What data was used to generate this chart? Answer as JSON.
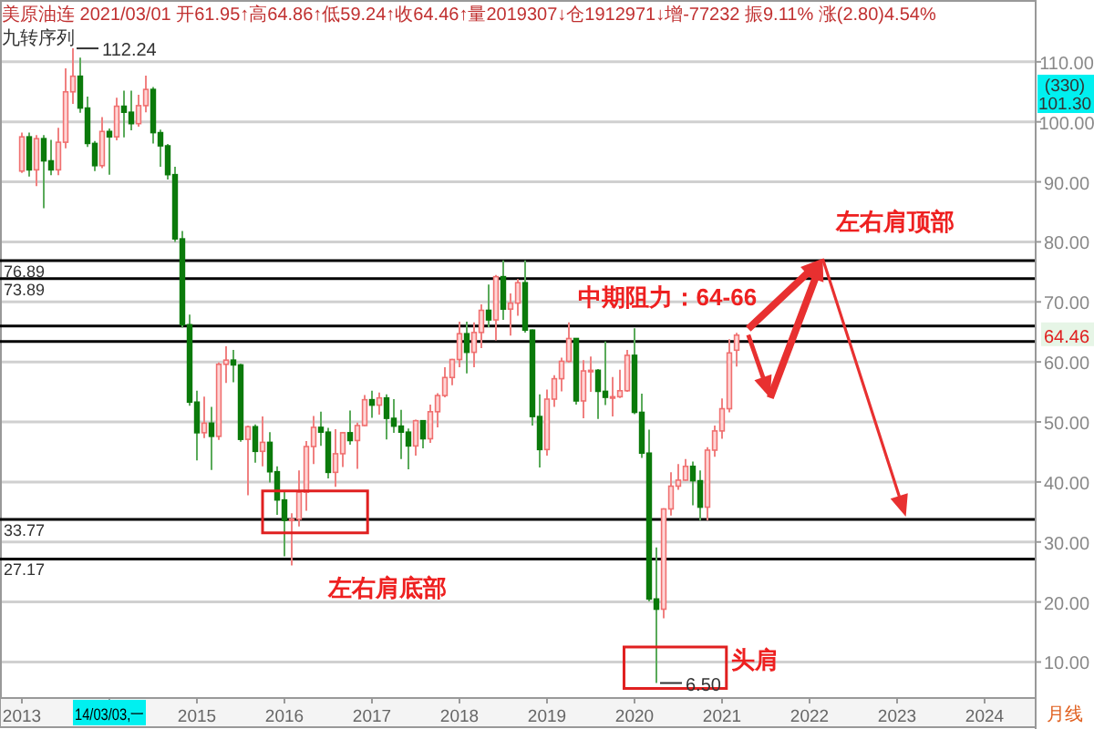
{
  "chart_data": {
    "type": "candlestick",
    "title": "美原油连 2021/03/01 开61.95↑高64.86↑低59.24↑收64.46↑量2019307↓仓1912971↓增-77232 振9.11% 涨(2.80)4.54%",
    "subtitle": "九转序列",
    "x": [
      "2013-01",
      "2013-02",
      "2013-03",
      "2013-04",
      "2013-05",
      "2013-06",
      "2013-07",
      "2013-08",
      "2013-09",
      "2013-10",
      "2013-11",
      "2013-12",
      "2014-01",
      "2014-02",
      "2014-03",
      "2014-04",
      "2014-05",
      "2014-06",
      "2014-07",
      "2014-08",
      "2014-09",
      "2014-10",
      "2014-11",
      "2014-12",
      "2015-01",
      "2015-02",
      "2015-03",
      "2015-04",
      "2015-05",
      "2015-06",
      "2015-07",
      "2015-08",
      "2015-09",
      "2015-10",
      "2015-11",
      "2015-12",
      "2016-01",
      "2016-02",
      "2016-03",
      "2016-04",
      "2016-05",
      "2016-06",
      "2016-07",
      "2016-08",
      "2016-09",
      "2016-10",
      "2016-11",
      "2016-12",
      "2017-01",
      "2017-02",
      "2017-03",
      "2017-04",
      "2017-05",
      "2017-06",
      "2017-07",
      "2017-08",
      "2017-09",
      "2017-10",
      "2017-11",
      "2017-12",
      "2018-01",
      "2018-02",
      "2018-03",
      "2018-04",
      "2018-05",
      "2018-06",
      "2018-07",
      "2018-08",
      "2018-09",
      "2018-10",
      "2018-11",
      "2018-12",
      "2019-01",
      "2019-02",
      "2019-03",
      "2019-04",
      "2019-05",
      "2019-06",
      "2019-07",
      "2019-08",
      "2019-09",
      "2019-10",
      "2019-11",
      "2019-12",
      "2020-01",
      "2020-02",
      "2020-03",
      "2020-04",
      "2020-05",
      "2020-06",
      "2020-07",
      "2020-08",
      "2020-09",
      "2020-10",
      "2020-11",
      "2020-12",
      "2021-01",
      "2021-02",
      "2021-03"
    ],
    "ohlc": [
      [
        91.8,
        98.2,
        91.5,
        97.5
      ],
      [
        97.5,
        98.2,
        90.9,
        92.0
      ],
      [
        92.0,
        97.8,
        89.3,
        97.2
      ],
      [
        97.2,
        97.8,
        85.6,
        93.5
      ],
      [
        93.5,
        97.0,
        91.1,
        92.0
      ],
      [
        92.0,
        99.0,
        91.1,
        96.6
      ],
      [
        96.6,
        108.9,
        95.6,
        105.0
      ],
      [
        105.0,
        112.24,
        103.0,
        107.6
      ],
      [
        107.6,
        110.7,
        101.5,
        102.3
      ],
      [
        102.3,
        104.2,
        95.8,
        96.4
      ],
      [
        96.4,
        96.8,
        91.8,
        92.7
      ],
      [
        92.7,
        100.8,
        92.3,
        98.4
      ],
      [
        98.4,
        98.9,
        91.2,
        97.5
      ],
      [
        97.5,
        104.0,
        96.9,
        102.6
      ],
      [
        102.6,
        105.2,
        97.4,
        101.6
      ],
      [
        101.6,
        105.2,
        98.6,
        99.7
      ],
      [
        99.7,
        104.5,
        99.2,
        102.7
      ],
      [
        102.7,
        107.7,
        101.6,
        105.4
      ],
      [
        105.4,
        105.8,
        96.4,
        98.2
      ],
      [
        98.2,
        98.7,
        92.5,
        96.0
      ],
      [
        96.0,
        96.3,
        90.4,
        91.2
      ],
      [
        91.2,
        92.5,
        80.0,
        80.5
      ],
      [
        80.5,
        81.8,
        65.7,
        66.2
      ],
      [
        66.2,
        67.9,
        52.7,
        53.3
      ],
      [
        53.3,
        55.2,
        43.6,
        48.2
      ],
      [
        48.2,
        54.2,
        47.3,
        49.8
      ],
      [
        49.8,
        52.5,
        42.0,
        47.6
      ],
      [
        47.6,
        59.9,
        47.0,
        59.6
      ],
      [
        59.6,
        62.6,
        56.5,
        60.3
      ],
      [
        60.3,
        62.0,
        56.6,
        59.5
      ],
      [
        59.5,
        59.7,
        46.7,
        47.1
      ],
      [
        47.1,
        49.4,
        37.8,
        49.2
      ],
      [
        49.2,
        49.6,
        43.2,
        45.1
      ],
      [
        45.1,
        50.9,
        42.6,
        46.6
      ],
      [
        46.6,
        48.3,
        39.9,
        41.7
      ],
      [
        41.7,
        42.6,
        34.5,
        37.0
      ],
      [
        37.0,
        38.4,
        27.6,
        33.6
      ],
      [
        33.6,
        34.8,
        26.1,
        33.8
      ],
      [
        33.8,
        41.9,
        32.6,
        38.3
      ],
      [
        38.3,
        46.8,
        35.2,
        45.9
      ],
      [
        45.9,
        51.0,
        43.0,
        49.1
      ],
      [
        49.1,
        51.7,
        46.0,
        48.3
      ],
      [
        48.3,
        49.0,
        40.6,
        41.6
      ],
      [
        41.6,
        48.8,
        39.2,
        44.7
      ],
      [
        44.7,
        48.3,
        42.5,
        48.2
      ],
      [
        48.2,
        51.9,
        46.2,
        46.9
      ],
      [
        46.9,
        49.9,
        42.2,
        49.4
      ],
      [
        49.4,
        54.5,
        49.3,
        53.7
      ],
      [
        53.7,
        55.2,
        50.7,
        52.8
      ],
      [
        52.8,
        54.9,
        51.2,
        54.0
      ],
      [
        54.0,
        54.6,
        47.1,
        50.6
      ],
      [
        50.6,
        53.8,
        48.2,
        49.3
      ],
      [
        49.3,
        52.0,
        43.8,
        48.3
      ],
      [
        48.3,
        48.9,
        42.1,
        46.0
      ],
      [
        46.0,
        50.4,
        44.4,
        50.2
      ],
      [
        50.2,
        50.3,
        45.6,
        47.2
      ],
      [
        47.2,
        52.9,
        46.5,
        51.7
      ],
      [
        51.7,
        54.8,
        49.1,
        54.4
      ],
      [
        54.4,
        59.1,
        54.1,
        57.4
      ],
      [
        57.4,
        60.5,
        56.1,
        60.4
      ],
      [
        60.4,
        66.7,
        59.1,
        64.7
      ],
      [
        64.7,
        66.7,
        58.1,
        61.6
      ],
      [
        61.6,
        66.6,
        59.1,
        64.9
      ],
      [
        64.9,
        69.6,
        62.3,
        68.6
      ],
      [
        68.6,
        72.9,
        65.8,
        67.0
      ],
      [
        67.0,
        74.5,
        63.6,
        74.2
      ],
      [
        74.2,
        76.9,
        67.0,
        68.8
      ],
      [
        68.8,
        71.4,
        64.4,
        69.8
      ],
      [
        69.8,
        73.8,
        67.7,
        73.2
      ],
      [
        73.2,
        76.9,
        64.9,
        65.3
      ],
      [
        65.3,
        65.4,
        49.4,
        50.9
      ],
      [
        50.9,
        54.6,
        42.4,
        45.4
      ],
      [
        45.4,
        55.4,
        44.4,
        53.8
      ],
      [
        53.8,
        57.8,
        52.5,
        57.2
      ],
      [
        57.2,
        60.7,
        55.1,
        60.1
      ],
      [
        60.1,
        66.6,
        59.9,
        63.9
      ],
      [
        63.9,
        63.9,
        52.9,
        53.5
      ],
      [
        53.5,
        60.3,
        50.6,
        58.5
      ],
      [
        58.5,
        60.9,
        55.0,
        58.6
      ],
      [
        58.6,
        58.8,
        50.5,
        55.1
      ],
      [
        55.1,
        63.4,
        52.8,
        54.1
      ],
      [
        54.1,
        57.5,
        50.9,
        54.2
      ],
      [
        54.2,
        58.7,
        54.0,
        55.2
      ],
      [
        55.2,
        62.0,
        55.0,
        61.1
      ],
      [
        61.1,
        65.6,
        51.3,
        51.6
      ],
      [
        51.6,
        54.7,
        44.0,
        44.8
      ],
      [
        44.8,
        48.7,
        20.1,
        20.5
      ],
      [
        20.5,
        29.1,
        6.5,
        18.8
      ],
      [
        18.8,
        35.6,
        17.3,
        35.5
      ],
      [
        35.5,
        41.6,
        34.4,
        39.3
      ],
      [
        39.3,
        43.0,
        38.7,
        40.3
      ],
      [
        40.3,
        43.8,
        40.2,
        42.6
      ],
      [
        42.6,
        43.4,
        36.1,
        40.2
      ],
      [
        40.2,
        41.9,
        33.6,
        35.8
      ],
      [
        35.8,
        45.8,
        33.6,
        45.3
      ],
      [
        45.3,
        49.4,
        44.2,
        48.5
      ],
      [
        48.5,
        53.9,
        47.2,
        52.2
      ],
      [
        52.2,
        63.8,
        51.6,
        61.5
      ],
      [
        61.95,
        64.86,
        59.24,
        64.46
      ]
    ],
    "xlim": [
      "2012-10",
      "2024-08"
    ],
    "xticks": [
      {
        "value": "2013",
        "label": "2013"
      },
      {
        "value": "2014",
        "label": null
      },
      {
        "value": "2015",
        "label": "2015"
      },
      {
        "value": "2016",
        "label": "2016"
      },
      {
        "value": "2017",
        "label": "2017"
      },
      {
        "value": "2018",
        "label": "2018"
      },
      {
        "value": "2019",
        "label": "2019"
      },
      {
        "value": "2020",
        "label": "2020"
      },
      {
        "value": "2021",
        "label": "2021"
      },
      {
        "value": "2022",
        "label": "2022"
      },
      {
        "value": "2023",
        "label": "2023"
      },
      {
        "value": "2024",
        "label": "2024"
      }
    ],
    "ylim": [
      4,
      120.3
    ],
    "yticks": [
      {
        "value": 10,
        "label": "10.00"
      },
      {
        "value": 20,
        "label": "20.00"
      },
      {
        "value": 30,
        "label": "30.00"
      },
      {
        "value": 40,
        "label": "40.00"
      },
      {
        "value": 50,
        "label": "50.00"
      },
      {
        "value": 60,
        "label": "60.00"
      },
      {
        "value": 70,
        "label": "70.00"
      },
      {
        "value": 80,
        "label": "80.00"
      },
      {
        "value": 90,
        "label": "90.00"
      },
      {
        "value": 100,
        "label": "100.00"
      },
      {
        "value": 110,
        "label": "110.00"
      }
    ],
    "grid": "y",
    "ref_lines": [
      {
        "axis": "y",
        "value": 76.89,
        "label": "76.89",
        "color": "#000000"
      },
      {
        "axis": "y",
        "value": 73.89,
        "label": "73.89",
        "color": "#000000"
      },
      {
        "axis": "y",
        "value": 66,
        "label": null,
        "color": "#000000"
      },
      {
        "axis": "y",
        "value": 63.4,
        "label": null,
        "color": "#000000"
      },
      {
        "axis": "y",
        "value": 33.77,
        "label": "33.77",
        "color": "#000000"
      },
      {
        "axis": "y",
        "value": 27.17,
        "label": "27.17",
        "color": "#000000"
      }
    ],
    "annotations": [
      {
        "text": "112.24",
        "x": "2013-08",
        "y": 112.24
      },
      {
        "text": "6.50",
        "x": "2020-04",
        "y": 6.5
      },
      "中期阻力：64-66",
      "左右肩顶部",
      "左右肩底部",
      "头肩",
      "64.46",
      "(330)",
      "101.30",
      "14/03/03,一",
      "月线"
    ]
  }
}
